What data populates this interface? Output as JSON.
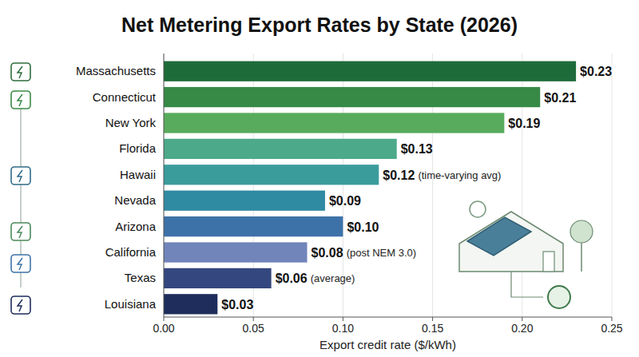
{
  "chart_data": {
    "type": "bar",
    "orientation": "horizontal",
    "title": "Net Metering Export Rates by State (2026)",
    "x_label": "Export credit rate ($/kWh)",
    "categories": [
      "Massachusetts",
      "Connecticut",
      "New York",
      "Florida",
      "Hawaii",
      "Nevada",
      "Arizona",
      "California",
      "Texas",
      "Louisiana"
    ],
    "values": [
      0.23,
      0.21,
      0.19,
      0.13,
      0.12,
      0.09,
      0.1,
      0.08,
      0.06,
      0.03
    ],
    "value_labels": [
      "$0.23",
      "$0.21",
      "$0.19",
      "$0.13",
      "$0.12",
      "$0.09",
      "$0.10",
      "$0.08",
      "$0.06",
      "$0.03"
    ],
    "annotations": [
      null,
      null,
      null,
      null,
      "(time-varying avg)",
      null,
      null,
      "(post NEM 3.0)",
      "(average)",
      null
    ],
    "colors": [
      "#1e6b3a",
      "#378a46",
      "#58ab5c",
      "#4ca98a",
      "#3b9c9c",
      "#2f8ba2",
      "#3d72a8",
      "#7185bb",
      "#34477e",
      "#1f2d5c"
    ],
    "xlim": [
      0,
      0.25
    ],
    "xticks": [
      {
        "value": 0,
        "label": "0.00"
      },
      0.05,
      {
        "value": 0.1,
        "label": "0.10"
      },
      0.15,
      {
        "value": 0.2,
        "label": "0.20"
      },
      0.25
    ],
    "grid": true,
    "data_labels": true
  }
}
